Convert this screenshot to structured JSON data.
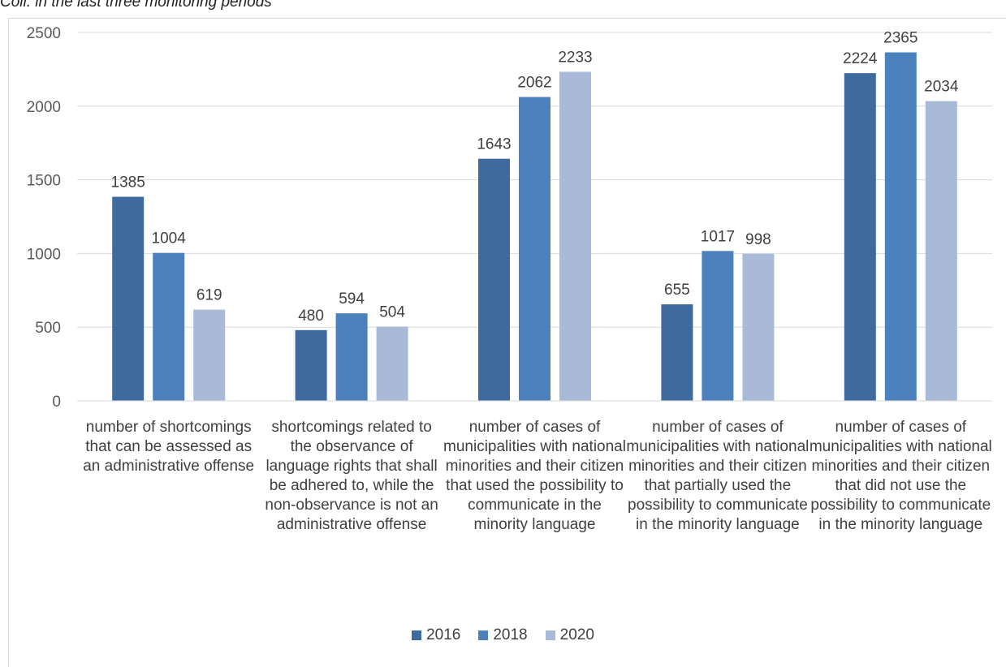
{
  "title": "Coll. in the last three monitoring periods",
  "chart_data": {
    "type": "bar",
    "categories": [
      "number of shortcomings that can be assessed as an administrative offense",
      "shortcomings related to the observance of language rights that shall be adhered to, while the non-observance is not an administrative offense",
      "number of cases of municipalities with national minorities and their citizen that used the possibility to communicate in the minority language",
      "number of cases of municipalities with national minorities and their citizen that partially used the possibility to communicate in the minority language",
      "number of cases of municipalities with national minorities and their citizen that did not use the possibility to communicate in the minority language"
    ],
    "series": [
      {
        "name": "2016",
        "color": "#3f6aa0",
        "values": [
          1385,
          480,
          1643,
          655,
          2224
        ]
      },
      {
        "name": "2018",
        "color": "#4d81bd",
        "values": [
          1004,
          594,
          2062,
          1017,
          2365
        ]
      },
      {
        "name": "2020",
        "color": "#a9bad9",
        "values": [
          619,
          504,
          2233,
          998,
          2034
        ]
      }
    ],
    "ylim": [
      0,
      2500
    ],
    "yticks": [
      0,
      500,
      1000,
      1500,
      2000,
      2500
    ],
    "grid": true,
    "legend_position": "bottom"
  }
}
